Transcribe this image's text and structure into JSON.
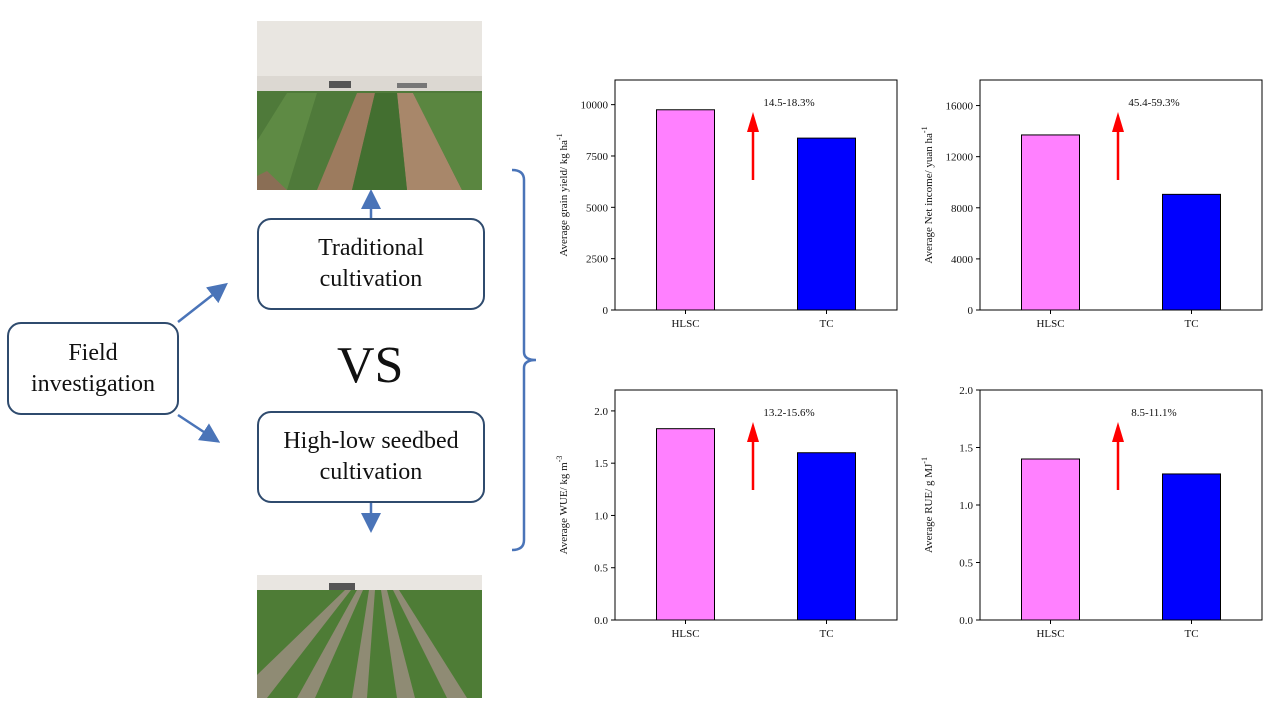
{
  "flow": {
    "field": "Field\ninvestigation",
    "traditional": "Traditional\ncultivation",
    "highlow": "High-low seedbed\ncultivation",
    "vs": "VS"
  },
  "colors": {
    "hlsc": "#ff80ff",
    "tc": "#0000ff",
    "arrow": "#ff0000",
    "flow": "#4a74b8",
    "box_border": "#2f4b6e"
  },
  "chart_data": [
    {
      "type": "bar",
      "categories": [
        "HLSC",
        "TC"
      ],
      "values": [
        9750,
        8370
      ],
      "ylabel": "Average grain yield/ kg ha",
      "ylabel_sup": "-1",
      "annotation": "14.5-18.3%",
      "ylim": [
        0,
        11200
      ],
      "yticks": [
        0,
        2500,
        5000,
        7500,
        10000
      ],
      "decimals": 0
    },
    {
      "type": "bar",
      "categories": [
        "HLSC",
        "TC"
      ],
      "values": [
        13700,
        9050
      ],
      "ylabel": "Average Net income/ yuan ha",
      "ylabel_sup": "-1",
      "annotation": "45.4-59.3%",
      "ylim": [
        0,
        18000
      ],
      "yticks": [
        0,
        4000,
        8000,
        12000,
        16000
      ],
      "decimals": 0
    },
    {
      "type": "bar",
      "categories": [
        "HLSC",
        "TC"
      ],
      "values": [
        1.83,
        1.6
      ],
      "ylabel": "Average WUE/ kg m",
      "ylabel_sup": "-3",
      "annotation": "13.2-15.6%",
      "ylim": [
        0,
        2.2
      ],
      "yticks": [
        0.0,
        0.5,
        1.0,
        1.5,
        2.0
      ],
      "decimals": 1
    },
    {
      "type": "bar",
      "categories": [
        "HLSC",
        "TC"
      ],
      "values": [
        1.4,
        1.27
      ],
      "ylabel": "Average RUE/ g MJ",
      "ylabel_sup": "-1",
      "annotation": "8.5-11.1%",
      "ylim": [
        0,
        2.0
      ],
      "yticks": [
        0.0,
        0.5,
        1.0,
        1.5,
        2.0
      ],
      "decimals": 1
    }
  ]
}
